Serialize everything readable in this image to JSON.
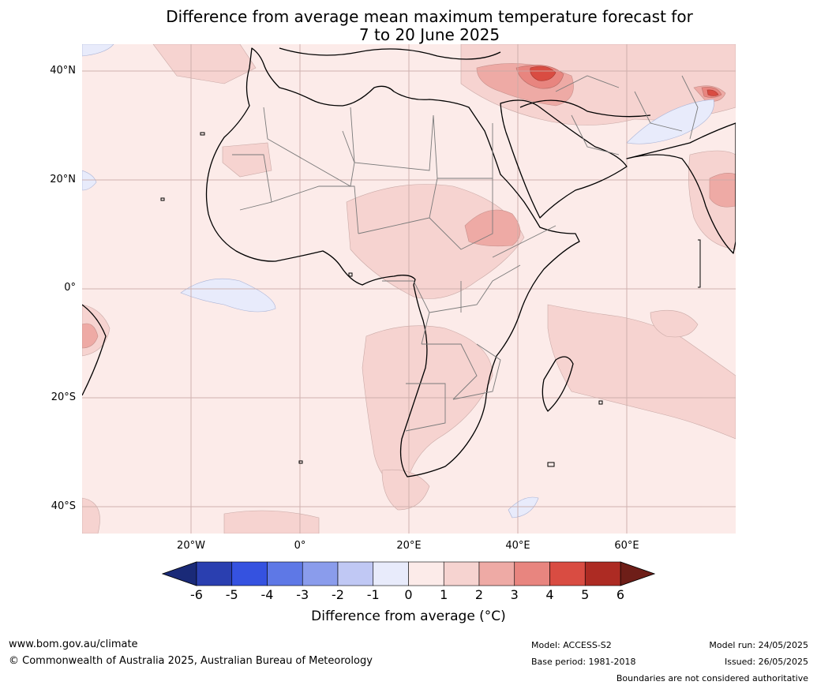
{
  "title_line1": "Difference from average mean maximum temperature forecast for",
  "title_line2": "7 to 20 June 2025",
  "lat_labels": [
    "40°N",
    "20°N",
    "0°",
    "20°S",
    "40°S"
  ],
  "lon_labels": [
    "20°W",
    "0°",
    "20°E",
    "40°E",
    "60°E"
  ],
  "colorbar": {
    "label": "Difference from average (°C)",
    "ticks": [
      "-6",
      "-5",
      "-4",
      "-3",
      "-2",
      "-1",
      "0",
      "1",
      "2",
      "3",
      "4",
      "5",
      "6"
    ],
    "colors": {
      "below": "#1a2a78",
      "m6_m5": "#2a3fb0",
      "m5_m4": "#3552e0",
      "m4_m3": "#5e78e6",
      "m3_m2": "#8a9cec",
      "m2_m1": "#c0c8f4",
      "m1_0": "#e8ebfb",
      "p0_1": "#fcebe9",
      "p1_2": "#f6d3d0",
      "p2_3": "#eeaaa5",
      "p3_4": "#e8857f",
      "p4_5": "#d94c42",
      "p5_6": "#ad2b23",
      "above": "#6e1e18"
    }
  },
  "footer": {
    "site": "www.bom.gov.au/climate",
    "copyright": "© Commonwealth of Australia 2025, Australian Bureau of Meteorology",
    "model": "Model: ACCESS-S2",
    "base_period": "Base period: 1981-2018",
    "model_run": "Model run: 24/05/2025",
    "issued": "Issued: 26/05/2025",
    "disclaimer": "Boundaries are not considered authoritative"
  }
}
